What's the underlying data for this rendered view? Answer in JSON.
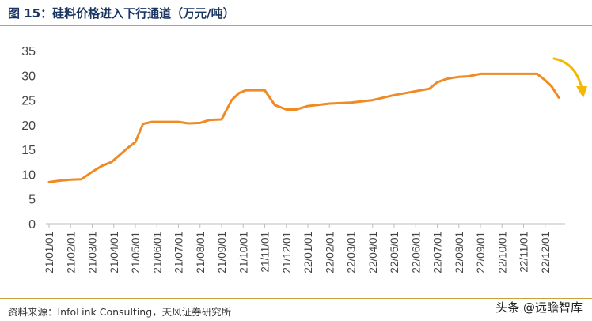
{
  "header": {
    "title": "图 15：硅料价格进入下行通道（万元/吨）"
  },
  "footer": {
    "source": "资料来源：InfoLink Consulting，天风证券研究所",
    "watermark": "头条 @远瞻智库"
  },
  "chart_data": {
    "type": "line",
    "title": "图 15：硅料价格进入下行通道（万元/吨）",
    "xlabel": "",
    "ylabel": "",
    "ylim": [
      0,
      35
    ],
    "yticks": [
      0,
      5,
      10,
      15,
      20,
      25,
      30,
      35
    ],
    "xticks": [
      "21/01/01",
      "21/02/01",
      "21/03/01",
      "21/04/01",
      "21/05/01",
      "21/06/01",
      "21/07/01",
      "21/08/01",
      "21/09/01",
      "21/10/01",
      "21/11/01",
      "21/12/01",
      "22/01/01",
      "22/02/01",
      "22/03/01",
      "22/04/01",
      "22/05/01",
      "22/06/01",
      "22/07/01",
      "22/08/01",
      "22/09/01",
      "22/10/01",
      "22/11/01",
      "22/12/01"
    ],
    "grid": false,
    "legend": "none",
    "line_color": "#f08a24",
    "annotation_arrow_color": "#f5b800",
    "annotation": "downward arrow at end of series",
    "series": [
      {
        "x": [
          "2021-01-01",
          "2021-01-15",
          "2021-02-01",
          "2021-02-15",
          "2021-03-01",
          "2021-03-15",
          "2021-03-29",
          "2021-04-10",
          "2021-04-22",
          "2021-05-01",
          "2021-05-12",
          "2021-05-25",
          "2021-06-10",
          "2021-06-20",
          "2021-07-01",
          "2021-07-15",
          "2021-08-01",
          "2021-08-15",
          "2021-09-01",
          "2021-09-15",
          "2021-09-25",
          "2021-10-05",
          "2021-10-18",
          "2021-11-01",
          "2021-11-15",
          "2021-12-01",
          "2021-12-15",
          "2022-01-01",
          "2022-01-15",
          "2022-02-01",
          "2022-03-01",
          "2022-04-01",
          "2022-05-01",
          "2022-06-01",
          "2022-06-20",
          "2022-07-01",
          "2022-07-15",
          "2022-08-01",
          "2022-08-15",
          "2022-09-01",
          "2022-09-15",
          "2022-10-01",
          "2022-11-01",
          "2022-11-20",
          "2022-12-01",
          "2022-12-10",
          "2022-12-20"
        ],
        "y": [
          8.4,
          8.7,
          8.9,
          9.0,
          10.5,
          11.7,
          12.5,
          14.0,
          15.5,
          16.5,
          20.2,
          20.6,
          20.6,
          20.6,
          20.6,
          20.3,
          20.4,
          21.0,
          21.1,
          25.0,
          26.4,
          27.0,
          27.0,
          27.0,
          24.0,
          23.1,
          23.1,
          23.8,
          24.0,
          24.3,
          24.5,
          25.0,
          26.0,
          26.8,
          27.3,
          28.6,
          29.3,
          29.7,
          29.8,
          30.3,
          30.3,
          30.3,
          30.3,
          30.3,
          29.0,
          27.8,
          25.5
        ]
      }
    ]
  }
}
